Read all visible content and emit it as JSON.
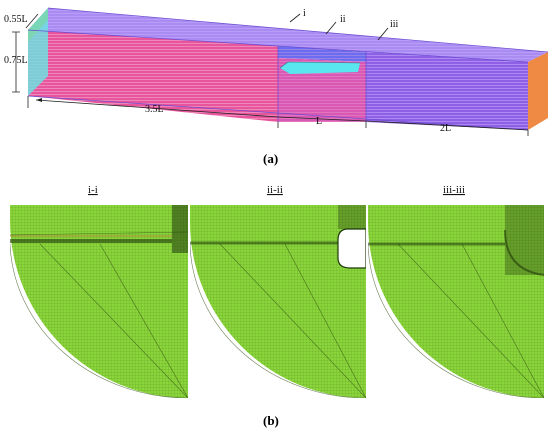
{
  "domain_panel": {
    "dim_width": "0.55L",
    "dim_height": "0.75L",
    "len_upstream": "3.5L",
    "len_middle": "L",
    "len_downstream": "2L",
    "section_marks": [
      "i",
      "ii",
      "iii"
    ],
    "caption": "(a)"
  },
  "mesh_panel": {
    "titles": [
      "i-i",
      "ii-ii",
      "iii-iii"
    ],
    "caption": "(b)"
  },
  "colors": {
    "pink": "#e8559c",
    "purple": "#8a52e0",
    "blue": "#5f6ef0",
    "cyan": "#59e6ee",
    "orange": "#ef8a45",
    "mesh_green": "#8ad63a",
    "mesh_line": "#2d4a12",
    "dim_line": "#222222"
  }
}
